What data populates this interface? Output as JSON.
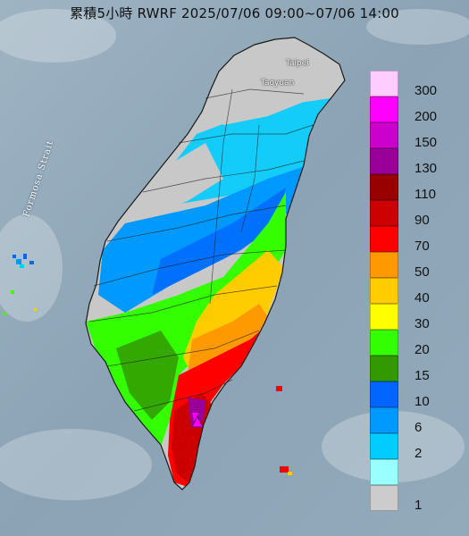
{
  "title": "累積5小時 RWRF 2025/07/06 09:00~07/06 14:00",
  "places": {
    "taipei": "Taipei",
    "taoyuan": "Taoyuan",
    "strait": "Formosa Strait"
  },
  "legend": {
    "items": [
      {
        "label": "300",
        "color": "#ffccff"
      },
      {
        "label": "200",
        "color": "#ff00ff"
      },
      {
        "label": "150",
        "color": "#cc00cc"
      },
      {
        "label": "130",
        "color": "#990099"
      },
      {
        "label": "110",
        "color": "#990000"
      },
      {
        "label": "90",
        "color": "#cc0000"
      },
      {
        "label": "70",
        "color": "#ff0000"
      },
      {
        "label": "50",
        "color": "#ff9900"
      },
      {
        "label": "40",
        "color": "#ffcc00"
      },
      {
        "label": "30",
        "color": "#ffff00"
      },
      {
        "label": "20",
        "color": "#33ff00"
      },
      {
        "label": "15",
        "color": "#339900"
      },
      {
        "label": "10",
        "color": "#0066ff"
      },
      {
        "label": "6",
        "color": "#0099ff"
      },
      {
        "label": "2",
        "color": "#00ccff"
      },
      {
        "label": "",
        "color": "#99ffff"
      },
      {
        "label": "1",
        "color": "#cccccc"
      }
    ]
  },
  "colors": {
    "sea": "#8fa6b6",
    "land": "#c8c8c8"
  }
}
